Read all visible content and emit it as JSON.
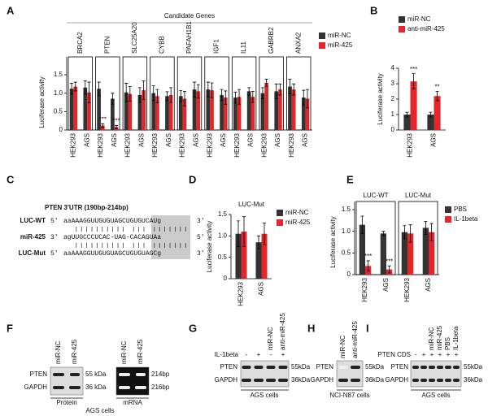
{
  "chart_data": [
    {
      "type": "bar",
      "panel": "A",
      "header": "Candidate Genes",
      "ylabel": "Luciferase activity",
      "groups": [
        "BRCA2",
        "PTEN",
        "SLC25A20",
        "CYBB",
        "PAFAH1B1",
        "IGF1",
        "IL11",
        "GABRB2",
        "ANXA2"
      ],
      "categories": [
        "HEK293",
        "AGS",
        "HEK293",
        "AGS",
        "HEK293",
        "AGS",
        "HEK293",
        "AGS",
        "HEK293",
        "AGS",
        "HEK293",
        "AGS",
        "HEK293",
        "AGS",
        "HEK293",
        "AGS",
        "HEK293",
        "AGS"
      ],
      "series": [
        {
          "name": "miR-NC",
          "color": "#333333",
          "values": [
            1.12,
            1.15,
            1.12,
            0.85,
            1.02,
            0.95,
            1.0,
            0.92,
            0.92,
            1.1,
            1.1,
            0.95,
            0.88,
            1.05,
            1.0,
            1.05,
            1.18,
            0.88
          ],
          "errors": [
            0.15,
            0.18,
            0.18,
            0.15,
            0.25,
            0.2,
            0.2,
            0.12,
            0.15,
            0.2,
            0.2,
            0.15,
            0.15,
            0.1,
            0.15,
            0.2,
            0.2,
            0.2
          ]
        },
        {
          "name": "miR-425",
          "color": "#e3262b",
          "values": [
            1.18,
            1.02,
            0.12,
            0.08,
            0.98,
            1.08,
            0.92,
            0.95,
            0.85,
            1.05,
            1.08,
            0.88,
            0.9,
            0.9,
            1.28,
            1.1,
            1.1,
            0.85
          ],
          "errors": [
            0.12,
            0.28,
            0.05,
            0.04,
            0.2,
            0.25,
            0.18,
            0.2,
            0.2,
            0.18,
            0.2,
            0.18,
            0.2,
            0.15,
            0.1,
            0.15,
            0.15,
            0.25
          ]
        }
      ],
      "annotations": [
        {
          "text": "***",
          "category": 2,
          "series": 1
        },
        {
          "text": "***",
          "category": 3,
          "series": 1
        }
      ],
      "ylim": [
        0,
        1.5
      ],
      "yticks": [
        0,
        0.5,
        {
          "value": 1,
          "label": "1.0"
        },
        1.5
      ]
    },
    {
      "type": "bar",
      "panel": "B",
      "ylabel": "Luciferase activity",
      "categories": [
        "HEK293",
        "AGS"
      ],
      "series": [
        {
          "name": "miR-NC",
          "color": "#333333",
          "values": [
            1.0,
            1.0
          ],
          "errors": [
            0.15,
            0.15
          ]
        },
        {
          "name": "anti-miR-425",
          "color": "#e3262b",
          "values": [
            3.15,
            2.2
          ],
          "errors": [
            0.5,
            0.3
          ]
        }
      ],
      "annotations": [
        {
          "text": "***",
          "category": 0,
          "series": 1
        },
        {
          "text": "**",
          "category": 1,
          "series": 1
        }
      ],
      "ylim": [
        0,
        4
      ],
      "yticks": [
        0,
        1,
        2,
        3,
        4
      ]
    },
    {
      "type": "bar",
      "panel": "D",
      "title": "LUC-Mut",
      "ylabel": "Luciferase activity",
      "categories": [
        "HEK293",
        "AGS"
      ],
      "series": [
        {
          "name": "miR-NC",
          "color": "#333333",
          "values": [
            1.05,
            0.85
          ],
          "errors": [
            0.3,
            0.15
          ]
        },
        {
          "name": "miR-425",
          "color": "#e3262b",
          "values": [
            1.1,
            1.05
          ],
          "errors": [
            0.35,
            0.25
          ]
        }
      ],
      "ylim": [
        0,
        1.5
      ],
      "yticks": [
        0,
        0.5,
        {
          "value": 1,
          "label": "1.0"
        },
        1.5
      ]
    },
    {
      "type": "bar",
      "panel": "E",
      "ylabel": "Luciferase activity",
      "groups": [
        "LUC-WT",
        "LUC-Mut"
      ],
      "categories": [
        "HEK293",
        "AGS",
        "HEK293",
        "AGS"
      ],
      "series": [
        {
          "name": "PBS",
          "color": "#333333",
          "values": [
            1.15,
            0.95,
            0.98,
            1.08
          ],
          "errors": [
            0.2,
            0.05,
            0.15,
            0.15
          ]
        },
        {
          "name": "IL-1beta",
          "color": "#e3262b",
          "values": [
            0.2,
            0.12,
            0.95,
            0.98
          ],
          "errors": [
            0.12,
            0.08,
            0.2,
            0.2
          ]
        }
      ],
      "annotations": [
        {
          "text": "***",
          "category": 0,
          "series": 1
        },
        {
          "text": "***",
          "category": 1,
          "series": 1
        }
      ],
      "ylim": [
        0,
        1.5
      ],
      "yticks": [
        0,
        0.5,
        {
          "value": 1,
          "label": "1.0"
        },
        1.5
      ]
    }
  ],
  "panel_c": {
    "panel": "C",
    "title": "PTEN 3'UTR (190bp-214bp)",
    "rows": [
      {
        "name": "LUC-WT",
        "left": "5'",
        "seq": "aaAAAGGUUGUGUAGCUGUGUCAUg",
        "right": "3'"
      },
      {
        "name": "miR-425",
        "left": "3'",
        "seq": "agUUGCCCUCAC-UAG-CACAGUAa",
        "right": "5'"
      },
      {
        "name": "LUC-Mut",
        "left": "5'",
        "seq": "aaAAAGGUUGUGUAGCUGUGUAGCg",
        "right": "3'"
      }
    ]
  },
  "blots": [
    {
      "panel": "F",
      "parts": [
        {
          "lanes": [
            "miR-NC",
            "miR-425"
          ],
          "rows": [
            "PTEN",
            "GAPDH"
          ],
          "sizes": [
            "55 kDa",
            "36 kDa"
          ],
          "label": "Protein"
        },
        {
          "lanes": [
            "miR-NC",
            "miR-425"
          ],
          "sizes": [
            "214bp",
            "216bp"
          ],
          "label": "mRNA"
        }
      ],
      "cells": "AGS cells"
    },
    {
      "panel": "G",
      "treatment": "IL-1beta",
      "signs": [
        "-",
        "+",
        "-",
        "+"
      ],
      "lanes": [
        "miR-NC",
        "anti-miR-425"
      ],
      "rows": [
        "PTEN",
        "GAPDH"
      ],
      "sizes": [
        "55kDa",
        "36kDa"
      ],
      "cells": "AGS cells"
    },
    {
      "panel": "H",
      "lanes": [
        "miR-NC",
        "anti-miR-425"
      ],
      "rows": [
        "PTEN",
        "GAPDH"
      ],
      "sizes": [
        "55kDa",
        "36kDa"
      ],
      "cells": "NCI-N87 cells"
    },
    {
      "panel": "I",
      "treatment": "PTEN CDS",
      "signs": [
        "-",
        "+",
        "+",
        "+",
        "+",
        "+"
      ],
      "lanes": [
        "miR-NC",
        "miR-425",
        "PBS",
        "IL-1beta"
      ],
      "rows": [
        "PTEN",
        "GAPDH"
      ],
      "sizes": [
        "55kDa",
        "36kDa"
      ],
      "cells": "AGS cells"
    }
  ]
}
